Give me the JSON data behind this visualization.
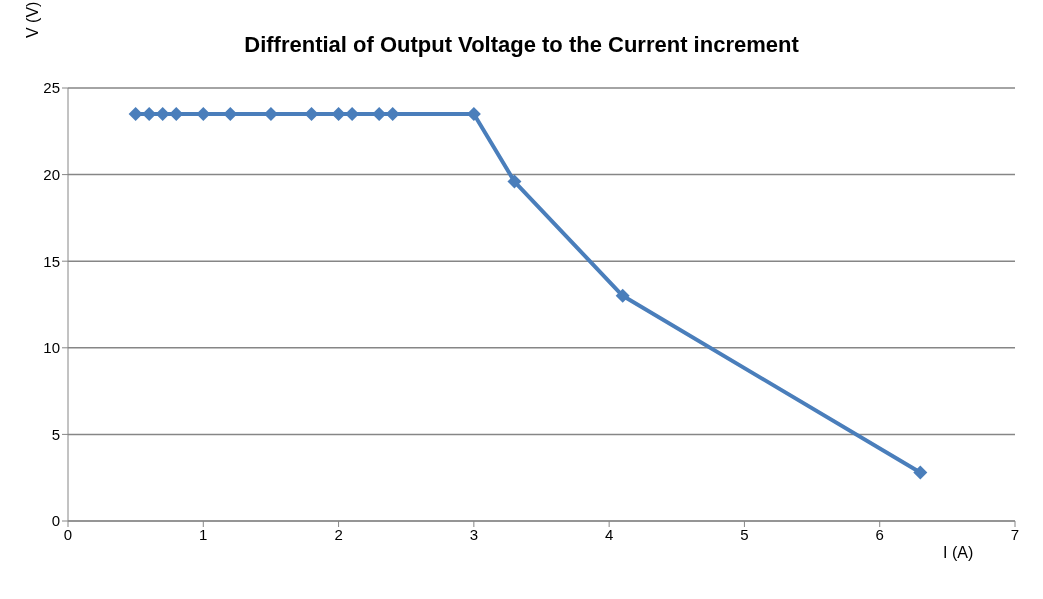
{
  "chart_data": {
    "type": "line",
    "title": "Diffrential of Output Voltage to the Current increment",
    "xlabel": "I (A)",
    "ylabel": "V (V)",
    "x": [
      0.5,
      0.6,
      0.7,
      0.8,
      1.0,
      1.2,
      1.5,
      1.8,
      2.0,
      2.1,
      2.3,
      2.4,
      3.0,
      3.3,
      4.1,
      6.3
    ],
    "series": [
      {
        "color": "#4a7ebb",
        "values": [
          23.5,
          23.5,
          23.5,
          23.5,
          23.5,
          23.5,
          23.5,
          23.5,
          23.5,
          23.5,
          23.5,
          23.5,
          23.5,
          19.6,
          13,
          2.8
        ]
      }
    ],
    "xlim": [
      0,
      7
    ],
    "xticks": [
      0,
      1,
      2,
      3,
      4,
      5,
      6,
      7
    ],
    "ylim": [
      0,
      25
    ],
    "yticks": [
      0,
      5,
      10,
      15,
      20,
      25
    ],
    "grid": "y",
    "marker": "diamond",
    "line_style": "solid",
    "legend": false
  }
}
